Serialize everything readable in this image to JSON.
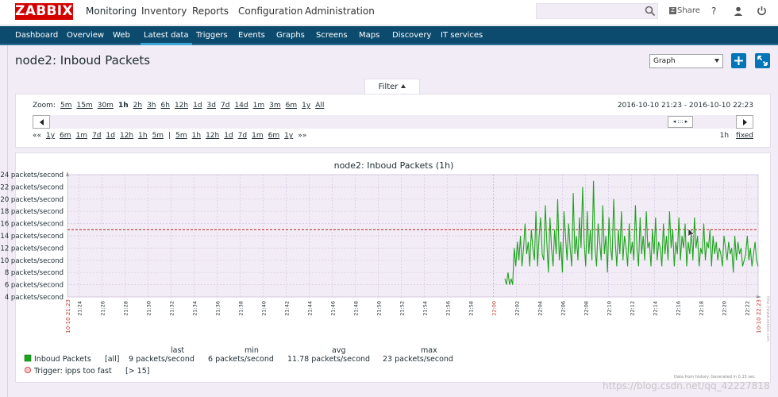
{
  "header": {
    "logo": "ZABBIX",
    "menu": [
      "Monitoring",
      "Inventory",
      "Reports",
      "Configuration",
      "Administration"
    ],
    "share_label": "Share",
    "help_label": "?"
  },
  "submenu": [
    "Dashboard",
    "Overview",
    "Web",
    "Latest data",
    "Triggers",
    "Events",
    "Graphs",
    "Screens",
    "Maps",
    "Discovery",
    "IT services"
  ],
  "page": {
    "title": "node2: Inboud Packets",
    "view_select": "Graph"
  },
  "filter": {
    "label": "Filter",
    "zoom_label": "Zoom:",
    "zoom_options": [
      "5m",
      "15m",
      "30m",
      "1h",
      "2h",
      "3h",
      "6h",
      "12h",
      "1d",
      "3d",
      "7d",
      "14d",
      "1m",
      "3m",
      "6m",
      "1y",
      "All"
    ],
    "zoom_current": "1h",
    "time_range": "2016-10-10 21:23 - 2016-10-10 22:23",
    "back_periods": [
      "««",
      "1y",
      "6m",
      "1m",
      "7d",
      "1d",
      "12h",
      "1h",
      "5m",
      "|",
      "5m",
      "1h",
      "12h",
      "1d",
      "7d",
      "1m",
      "6m",
      "1y",
      "»»"
    ],
    "period": "1h",
    "fixed": "fixed",
    "thumb_label": "◂ ::: ▸"
  },
  "colors": {
    "header_bg": "#ffffff",
    "subnav_bg": "#0d4b6e",
    "logo_bg": "#d40000",
    "page_bg": "#f2ecf6",
    "series": "#1ea31e",
    "trigger": "#c83232",
    "accent": "#0275b8",
    "time_red": "#c0392b"
  },
  "chart_data": {
    "type": "line",
    "title": "node2: Inboud Packets (1h)",
    "y_unit_label": "packets/second",
    "y_ticks": [
      "24 packets/second",
      "22 packets/second",
      "20 packets/second",
      "18 packets/second",
      "16 packets/second",
      "14 packets/second",
      "12 packets/second",
      "10 packets/second",
      "8 packets/second",
      "6 packets/second",
      "4 packets/second"
    ],
    "ylim": [
      4,
      24
    ],
    "x_tick_labels": [
      "21:24",
      "21:26",
      "21:28",
      "21:30",
      "21:32",
      "21:34",
      "21:36",
      "21:38",
      "21:40",
      "21:42",
      "21:44",
      "21:46",
      "21:48",
      "21:50",
      "21:52",
      "21:54",
      "21:56",
      "21:58",
      "22:00",
      "22:02",
      "22:04",
      "22:06",
      "22:08",
      "22:10",
      "22:12",
      "22:14",
      "22:16",
      "22:18",
      "22:20",
      "22:22"
    ],
    "x_start_label": "10-10 21:23",
    "x_end_label": "10-10 22:23",
    "x_midnight_label": "22:00",
    "trigger_value": 15,
    "series": [
      {
        "name": "Inboud Packets",
        "func": "[all]",
        "last": "9 packets/second",
        "min": "6 packets/second",
        "avg": "11.78 packets/second",
        "max": "23 packets/second",
        "start_time": "22:01",
        "end_time": "22:23",
        "values": [
          7,
          6,
          8,
          6,
          7,
          6,
          12,
          9,
          13,
          10,
          14,
          9,
          12,
          16,
          11,
          13,
          9,
          15,
          12,
          10,
          18,
          9,
          14,
          17,
          11,
          10,
          19,
          13,
          8,
          17,
          12,
          9,
          15,
          11,
          20,
          10,
          13,
          8,
          18,
          14,
          10,
          16,
          12,
          9,
          21,
          11,
          14,
          10,
          17,
          12,
          22,
          13,
          9,
          18,
          11,
          15,
          10,
          23,
          12,
          9,
          16,
          13,
          10,
          19,
          11,
          14,
          8,
          17,
          12,
          10,
          20,
          13,
          9,
          15,
          11,
          18,
          10,
          14,
          12,
          9,
          16,
          11,
          13,
          10,
          19,
          12,
          9,
          17,
          11,
          14,
          10,
          18,
          12,
          13,
          9,
          15,
          11,
          17,
          10,
          13,
          12,
          9,
          16,
          11,
          14,
          10,
          18,
          12,
          15,
          9,
          13,
          11,
          17,
          10,
          14,
          12,
          16,
          9,
          13,
          11,
          15,
          10,
          17,
          12,
          14,
          9,
          12,
          11,
          16,
          10,
          13,
          12,
          15,
          9,
          14,
          11,
          13,
          10,
          12,
          11,
          9,
          14,
          12,
          10,
          13,
          11,
          12,
          8,
          14,
          10,
          13,
          11,
          12,
          9,
          10,
          11,
          14,
          10,
          12,
          9,
          11,
          13,
          10,
          9
        ]
      }
    ],
    "legend": {
      "headers": [
        "last",
        "min",
        "avg",
        "max"
      ],
      "trigger_label": "Trigger: ipps too fast",
      "trigger_cond": "[> 15]"
    },
    "note": "Data from history. Generated in 0.15 sec",
    "side_label": "http://www.zabbix.com"
  },
  "watermark": "https://blog.csdn.net/qq_42227818"
}
